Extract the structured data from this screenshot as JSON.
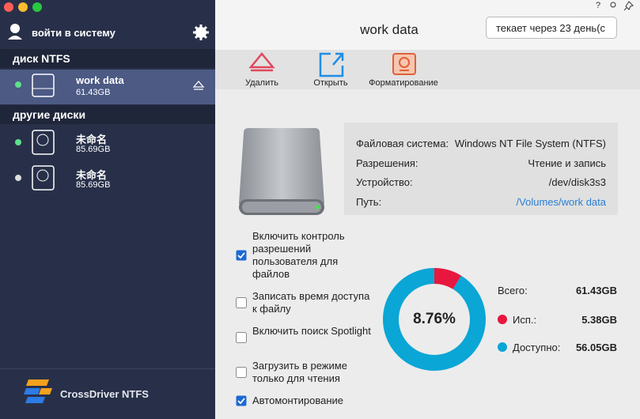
{
  "sidebar": {
    "login": "войти в систему",
    "ntfs_header": "диск NTFS",
    "ntfs_disks": [
      {
        "name": "work data",
        "size": "61.43GB"
      }
    ],
    "other_header": "другие диски",
    "other_disks": [
      {
        "name": "未命名",
        "size": "85.69GB"
      },
      {
        "name": "未命名",
        "size": "85.69GB"
      }
    ],
    "brand": "CrossDriver NTFS"
  },
  "header": {
    "title": "work data",
    "notice": "текает через 23 день(с"
  },
  "toolbar": [
    "Удалить",
    "Открыть",
    "Форматирование"
  ],
  "info": {
    "rows": [
      [
        "Файловая система:",
        "Windows NT File System (NTFS)"
      ],
      [
        "Разрешения:",
        "Чтение и запись"
      ],
      [
        "Устройство:",
        "/dev/disk3s3"
      ],
      [
        "Путь:",
        "/Volumes/work data"
      ]
    ]
  },
  "options": [
    {
      "label": "Включить контроль разрешений пользователя для файлов",
      "checked": true
    },
    {
      "label": "Записать время доступа к файлу",
      "checked": false
    },
    {
      "label": "Включить поиск Spotlight",
      "checked": false
    },
    {
      "label": "Загрузить в режиме только для чтения",
      "checked": false
    },
    {
      "label": "Автомонтирование",
      "checked": true
    }
  ],
  "usage": {
    "center_label": "8.76%",
    "total": {
      "name": "Всего:",
      "value": 61.43,
      "label": "61.43GB"
    },
    "items": [
      {
        "name": "Исп.:",
        "value": 5.38,
        "label": "5.38GB",
        "color": "#e8173f"
      },
      {
        "name": "Доступно:",
        "value": 56.05,
        "label": "56.05GB",
        "color": "#0aa6d6"
      }
    ]
  }
}
